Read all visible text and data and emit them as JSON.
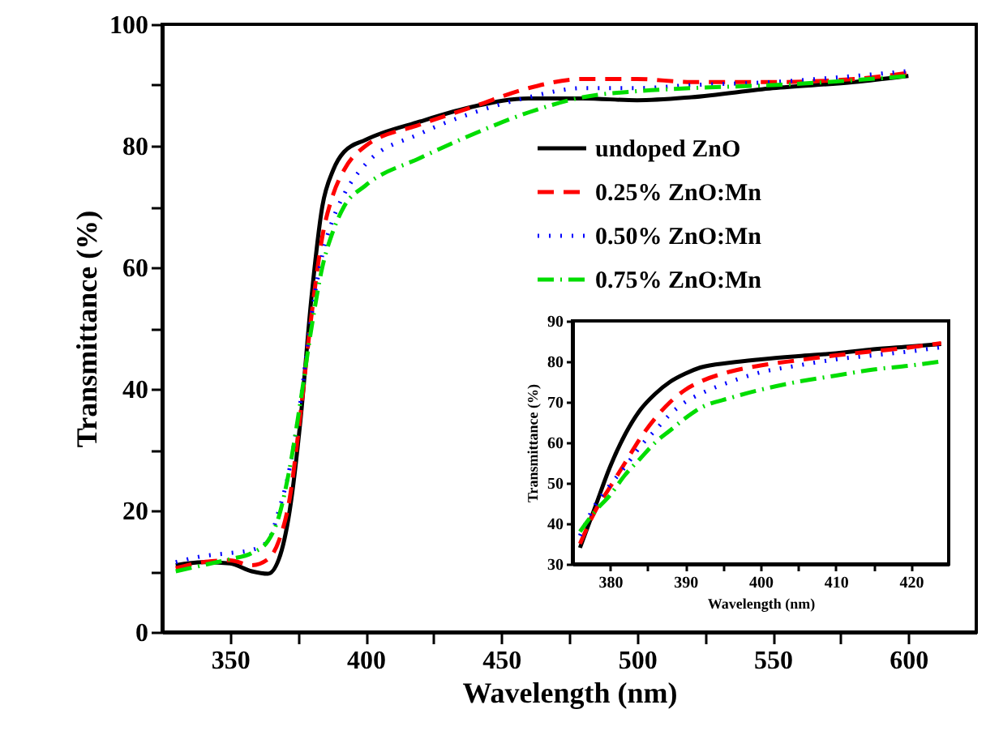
{
  "chart_data": [
    {
      "type": "line",
      "xlabel": "Wavelength (nm)",
      "ylabel": "Transmittance (%)",
      "xlim": [
        325,
        625
      ],
      "ylim": [
        0,
        100
      ],
      "xticks": [
        350,
        {
          "value": 375,
          "label": null
        },
        400,
        {
          "value": 425,
          "label": null
        },
        450,
        {
          "value": 475,
          "label": null
        },
        500,
        {
          "value": 525,
          "label": null
        },
        550,
        {
          "value": 575,
          "label": null
        },
        600
      ],
      "yticks": [
        0,
        {
          "value": 10,
          "label": null
        },
        20,
        {
          "value": 30,
          "label": null
        },
        40,
        {
          "value": 50,
          "label": null
        },
        60,
        {
          "value": 70,
          "label": null
        },
        80,
        {
          "value": 90,
          "label": null
        },
        100
      ],
      "legend": "top right",
      "x": [
        330,
        340,
        350,
        358,
        364,
        368,
        372,
        376,
        380,
        384,
        388,
        392,
        400,
        420,
        440,
        460,
        480,
        500,
        520,
        550,
        580,
        600
      ],
      "series": [
        {
          "name": "undoped ZnO",
          "color": "#000000",
          "line_style": "solid",
          "values": [
            11,
            11.5,
            11.3,
            10,
            9.6,
            12,
            20,
            35,
            55,
            70,
            76,
            79,
            81,
            84,
            86.5,
            87.8,
            87.8,
            87.5,
            88,
            89.5,
            90.5,
            91.5
          ]
        },
        {
          "name": "0.25% ZnO:Mn",
          "color": "#ff0000",
          "line_style": "dashed",
          "values": [
            10.5,
            11.5,
            11.8,
            11,
            12,
            15,
            22,
            36,
            52,
            65,
            72,
            76,
            80,
            83.5,
            86.5,
            89.5,
            91,
            91,
            90.5,
            90.5,
            91,
            92
          ]
        },
        {
          "name": "0.50% ZnO:Mn",
          "color": "#0000ff",
          "line_style": "dotted",
          "values": [
            11.5,
            12.5,
            13,
            13.5,
            15,
            20,
            27,
            38,
            52,
            62,
            68,
            72,
            77,
            82,
            85.5,
            88,
            89.5,
            89.5,
            90,
            90.5,
            91.5,
            92.3
          ]
        },
        {
          "name": "0.75% ZnO:Mn",
          "color": "#00dd00",
          "line_style": "dashdot",
          "values": [
            10,
            11,
            12,
            13,
            15,
            19,
            27,
            38,
            50,
            60,
            66,
            70,
            73.5,
            78,
            82,
            85.5,
            88,
            89,
            89.5,
            90,
            90.8,
            91.5
          ]
        }
      ]
    },
    {
      "type": "line",
      "xlabel": "Wavelength (nm)",
      "ylabel": "Transmittance (%)",
      "xlim": [
        375,
        425
      ],
      "ylim": [
        30,
        90
      ],
      "xticks": [
        380,
        {
          "value": 385,
          "label": null
        },
        390,
        {
          "value": 395,
          "label": null
        },
        400,
        {
          "value": 405,
          "label": null
        },
        410,
        {
          "value": 415,
          "label": null
        },
        420
      ],
      "yticks": [
        30,
        40,
        50,
        60,
        70,
        80,
        90
      ],
      "x": [
        376,
        378,
        380,
        382,
        384,
        386,
        388,
        390,
        392,
        396,
        400,
        405,
        410,
        415,
        420,
        424
      ],
      "series": [
        {
          "color": "#000000",
          "line_style": "solid",
          "values": [
            34,
            44,
            54,
            62,
            68,
            72,
            75,
            77,
            78.5,
            79.7,
            80.5,
            81.3,
            82,
            83,
            83.7,
            84.3
          ]
        },
        {
          "color": "#ff0000",
          "line_style": "dashed",
          "values": [
            35,
            43,
            49,
            55,
            61,
            66,
            70,
            73,
            75,
            77.5,
            79,
            80.3,
            81.5,
            82.5,
            83.5,
            84.5
          ]
        },
        {
          "color": "#0000ff",
          "line_style": "dotted",
          "values": [
            37,
            44.5,
            49.5,
            54,
            59,
            63,
            67,
            70,
            72,
            75,
            77.3,
            79,
            80.5,
            81.5,
            82.5,
            83.5
          ]
        },
        {
          "color": "#00dd00",
          "line_style": "dashdot",
          "values": [
            38,
            43,
            47,
            52,
            56,
            60,
            63,
            66,
            68.5,
            71,
            73,
            75,
            76.5,
            78,
            79,
            80
          ]
        }
      ]
    }
  ]
}
